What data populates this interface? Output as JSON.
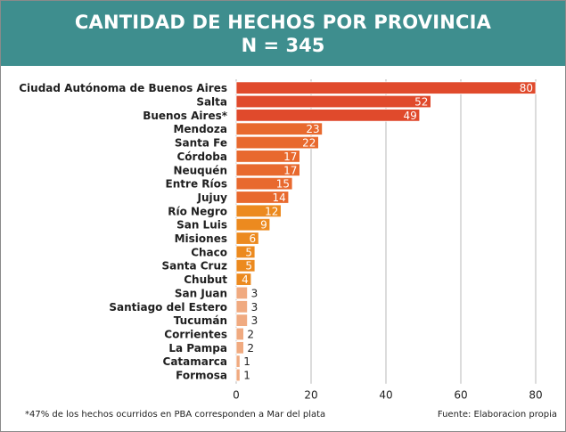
{
  "header": {
    "title": "CANTIDAD DE HECHOS POR PROVINCIA",
    "subtitle": "N = 345",
    "background": "#3e8e8e"
  },
  "footer": {
    "note": "*47% de los hechos ocurridos en PBA corresponden a Mar del plata",
    "source": "Fuente: Elaboracion propia"
  },
  "chart_data": {
    "type": "bar",
    "orientation": "horizontal",
    "title": "CANTIDAD DE HECHOS POR PROVINCIA",
    "subtitle": "N = 345",
    "categories": [
      "Ciudad Autónoma de Buenos Aires",
      "Salta",
      "Buenos Aires*",
      "Mendoza",
      "Santa Fe",
      "Córdoba",
      "Neuquén",
      "Entre Ríos",
      "Jujuy",
      "Río Negro",
      "San Luis",
      "Misiones",
      "Chaco",
      "Santa Cruz",
      "Chubut",
      "San Juan",
      "Santiago del Estero",
      "Tucumán",
      "Corrientes",
      "La Pampa",
      "Catamarca",
      "Formosa"
    ],
    "values": [
      80,
      52,
      49,
      23,
      22,
      17,
      17,
      15,
      14,
      12,
      9,
      6,
      5,
      5,
      4,
      3,
      3,
      3,
      2,
      2,
      1,
      1
    ],
    "colors": [
      "#e04a2c",
      "#e04a2c",
      "#e04a2c",
      "#e8692e",
      "#e8692e",
      "#e8692e",
      "#e8692e",
      "#e8692e",
      "#e8692e",
      "#ec8a1f",
      "#ec8a1f",
      "#ec8a1f",
      "#ec8a1f",
      "#ec8a1f",
      "#ec8a1f",
      "#f0aa80",
      "#f0aa80",
      "#f0aa80",
      "#f0aa80",
      "#f0aa80",
      "#f0aa80",
      "#f0aa80"
    ],
    "value_label_inside": [
      true,
      true,
      true,
      true,
      true,
      true,
      true,
      true,
      true,
      true,
      true,
      true,
      true,
      true,
      true,
      false,
      false,
      false,
      false,
      false,
      false,
      false
    ],
    "xlim": [
      0,
      80
    ],
    "xticks": [
      0,
      20,
      40,
      60,
      80
    ],
    "grid": true,
    "legend": "none"
  }
}
